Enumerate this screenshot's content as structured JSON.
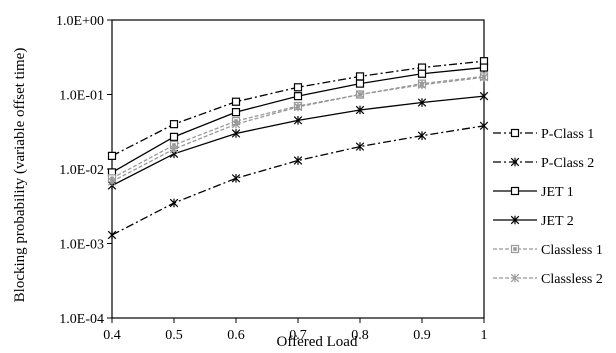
{
  "chart_data": {
    "type": "line",
    "xlabel": "Offered Load",
    "ylabel": "Blocking probability (variable offset time)",
    "x": [
      0.4,
      0.5,
      0.6,
      0.7,
      0.8,
      0.9,
      1
    ],
    "x_tick_labels": [
      "0.4",
      "0.5",
      "0.6",
      "0.7",
      "0.8",
      "0.9",
      "1"
    ],
    "y_tick_values": [
      0.0001,
      0.001,
      0.01,
      0.1,
      1
    ],
    "y_tick_labels": [
      "1.0E-04",
      "1.0E-03",
      "1.0E-02",
      "1.0E-01",
      "1.0E+00"
    ],
    "xlim": [
      0.4,
      1
    ],
    "ylim": [
      0.0001,
      1
    ],
    "y_scale": "log",
    "grid": false,
    "legend_position": "right",
    "series": [
      {
        "name": "P-Class 1",
        "values": [
          0.015,
          0.04,
          0.08,
          0.125,
          0.175,
          0.23,
          0.28
        ],
        "color": "#000000",
        "dash": "dashdot",
        "marker": "square"
      },
      {
        "name": "P-Class 2",
        "values": [
          0.0013,
          0.0035,
          0.0075,
          0.013,
          0.02,
          0.028,
          0.038
        ],
        "color": "#000000",
        "dash": "dashdot",
        "marker": "star"
      },
      {
        "name": "JET 1",
        "values": [
          0.009,
          0.027,
          0.058,
          0.095,
          0.14,
          0.19,
          0.23
        ],
        "color": "#000000",
        "dash": "solid",
        "marker": "square"
      },
      {
        "name": "JET 2",
        "values": [
          0.006,
          0.016,
          0.03,
          0.045,
          0.062,
          0.078,
          0.095
        ],
        "color": "#000000",
        "dash": "solid",
        "marker": "star"
      },
      {
        "name": "Classless 1",
        "values": [
          0.0075,
          0.021,
          0.044,
          0.07,
          0.1,
          0.14,
          0.175
        ],
        "color": "#999999",
        "dash": "dashed",
        "marker": "square-filled"
      },
      {
        "name": "Classless 2",
        "values": [
          0.0068,
          0.0185,
          0.04,
          0.068,
          0.1,
          0.135,
          0.17
        ],
        "color": "#999999",
        "dash": "dashed",
        "marker": "star"
      }
    ]
  }
}
